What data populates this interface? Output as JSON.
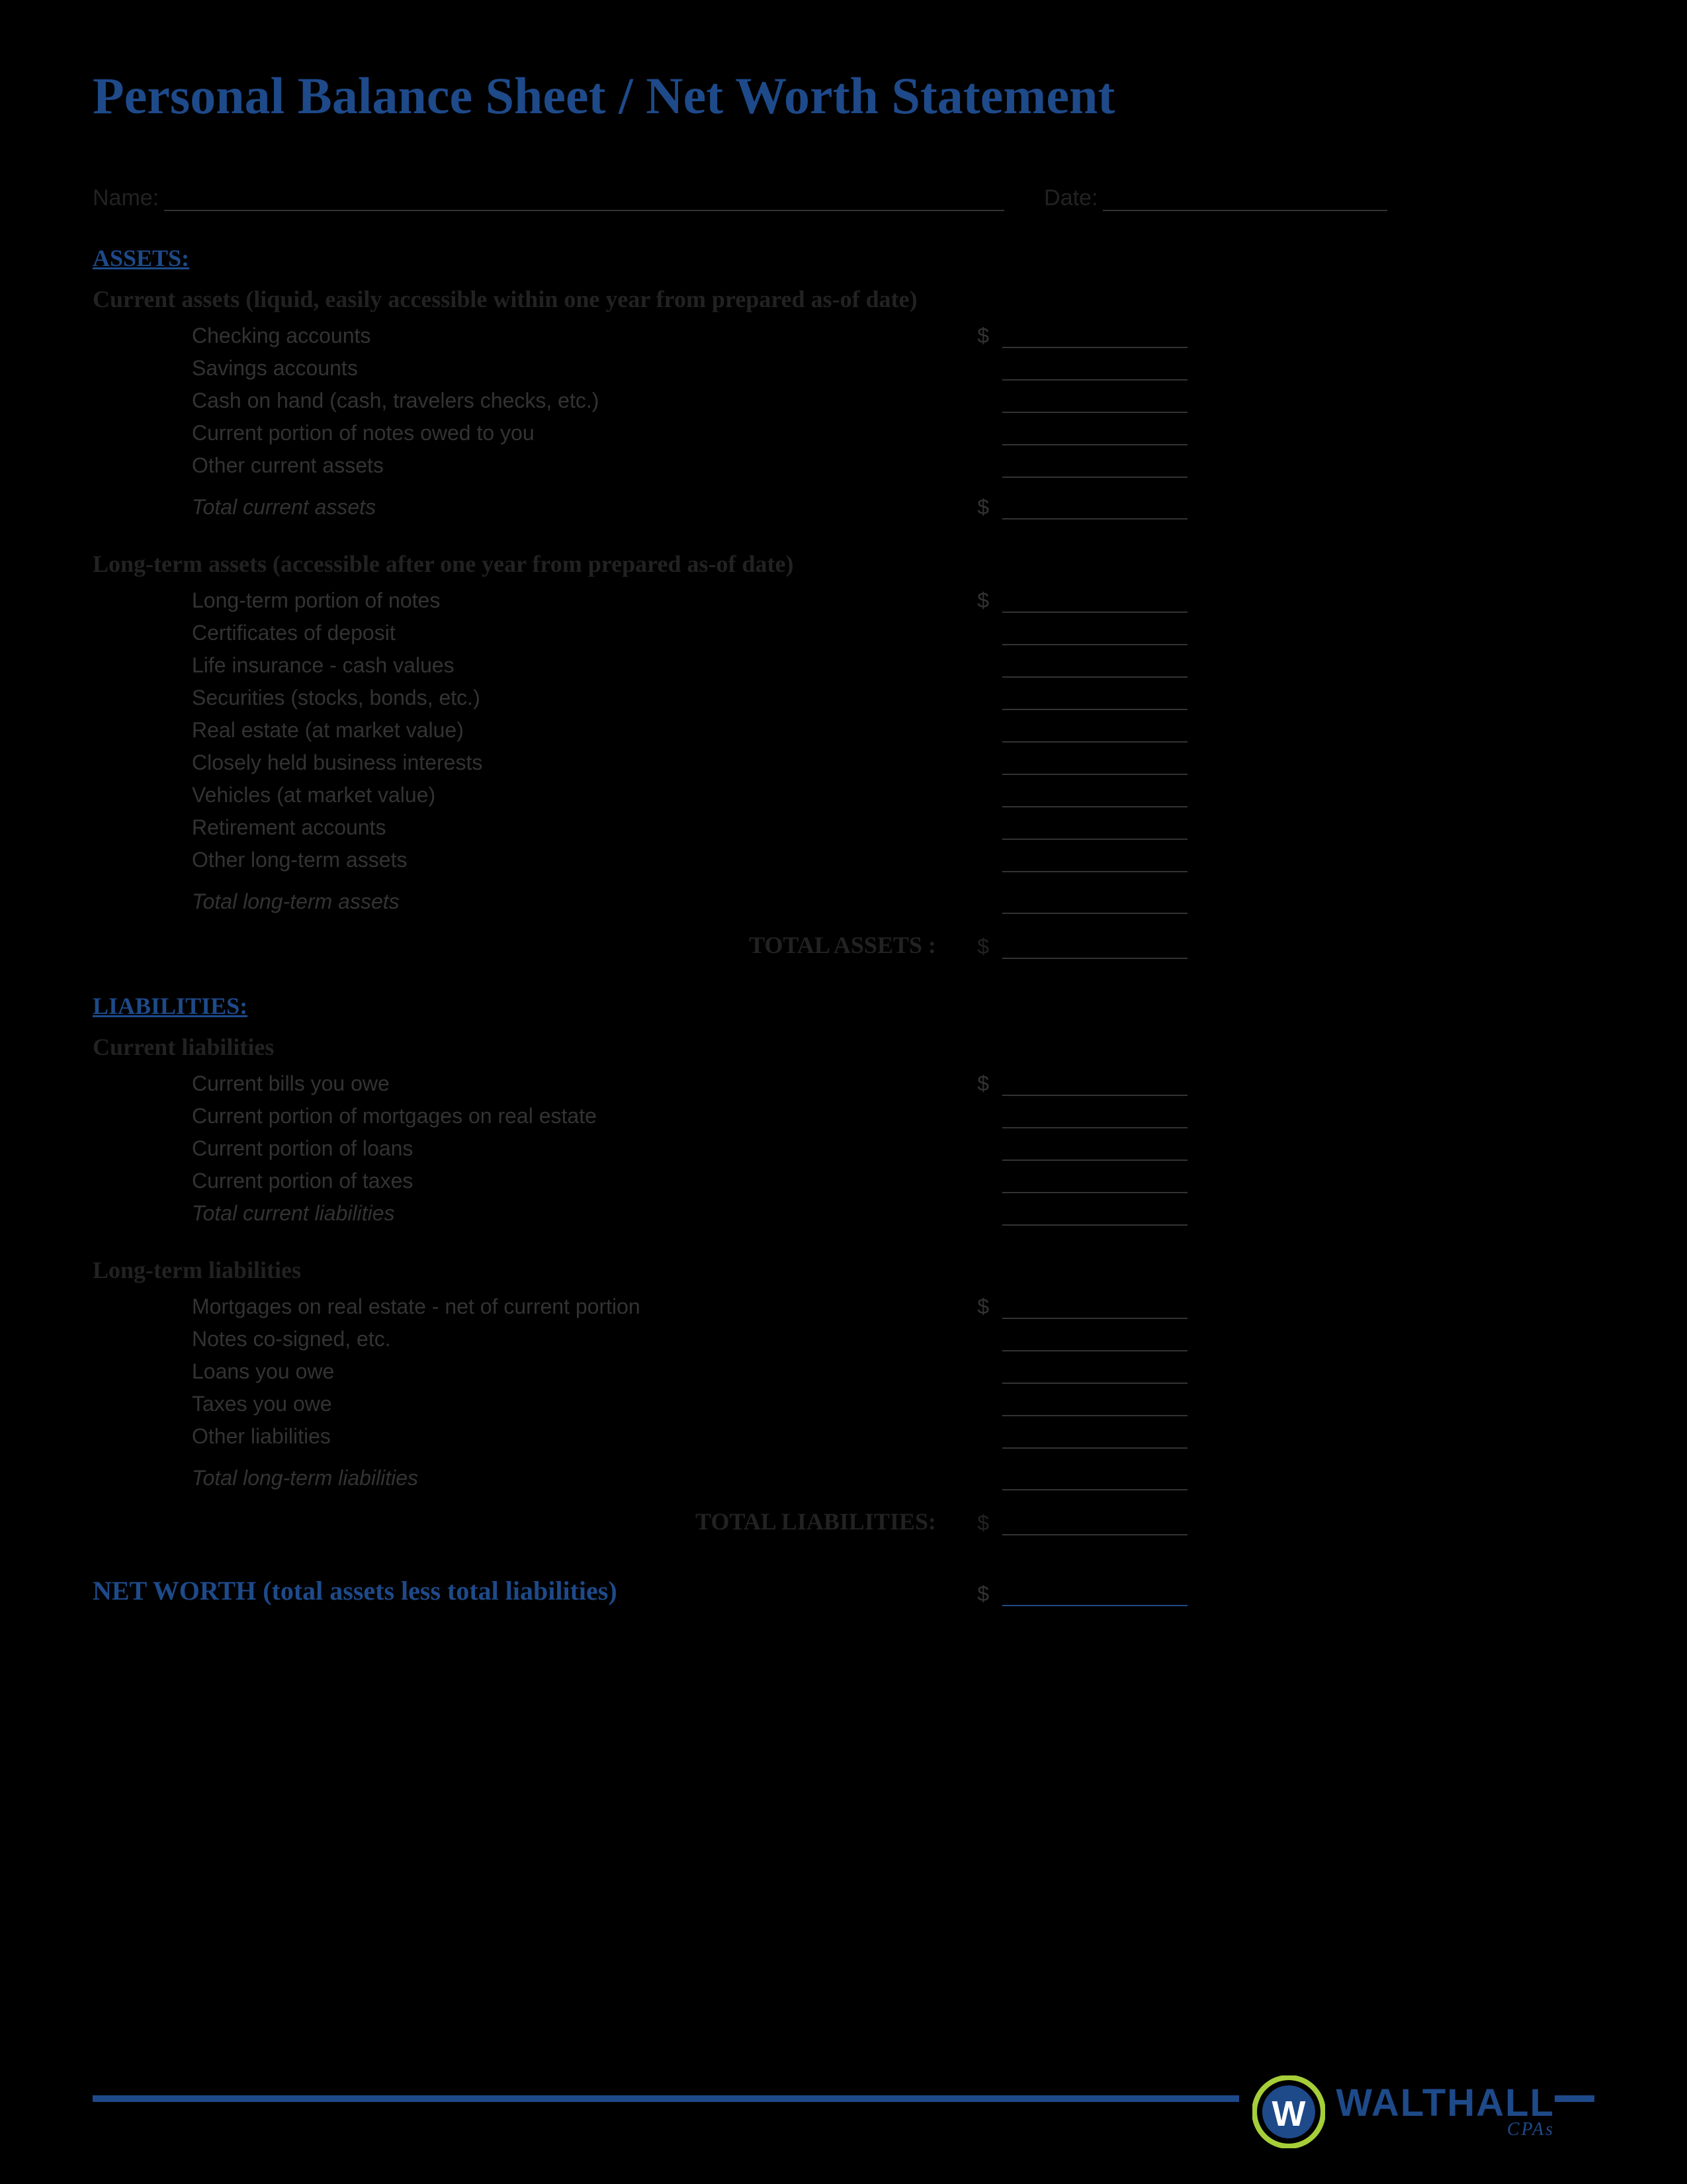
{
  "title": "Personal Balance Sheet / Net Worth Statement",
  "header": {
    "name_label": "Name:",
    "date_label": "Date:"
  },
  "colors": {
    "accent": "#1e4a8a",
    "text": "#333333",
    "logo_ring": "#a6ce39",
    "background": "#000000"
  },
  "currency_symbol": "$",
  "sections": {
    "assets": {
      "header": "ASSETS:",
      "current": {
        "header": "Current assets (liquid, easily accessible within one year from prepared as-of date)",
        "items": [
          "Checking accounts",
          "Savings accounts",
          "Cash on hand (cash, travelers checks, etc.)",
          "Current portion of notes owed to you",
          "Other current assets"
        ],
        "total_label": "Total current assets"
      },
      "longterm": {
        "header": "Long-term assets (accessible after one year from prepared as-of date)",
        "items": [
          "Long-term portion of notes",
          "Certificates of deposit",
          "Life insurance - cash values",
          "Securities (stocks, bonds, etc.)",
          "Real estate (at market value)",
          "Closely held business interests",
          "Vehicles (at market value)",
          "Retirement accounts",
          "Other long-term assets"
        ],
        "total_label": "Total long-term assets"
      },
      "grand_total_label": "TOTAL ASSETS :"
    },
    "liabilities": {
      "header": "LIABILITIES:",
      "current": {
        "header": "Current liabilities",
        "items": [
          "Current bills you owe",
          "Current portion of mortgages on real estate",
          "Current portion of loans",
          "Current portion of taxes"
        ],
        "total_label": "Total current liabilities"
      },
      "longterm": {
        "header": "Long-term liabilities",
        "items": [
          "Mortgages on real estate - net of current portion",
          "Notes co-signed, etc.",
          "Loans you owe",
          "Taxes you owe",
          "Other liabilities"
        ],
        "total_label": "Total long-term liabilities"
      },
      "grand_total_label": "TOTAL LIABILITIES:"
    }
  },
  "networth_label": "NET WORTH (total assets less total liabilities)",
  "logo": {
    "name": "WALTHALL",
    "sub": "CPAs",
    "letter": "W"
  }
}
